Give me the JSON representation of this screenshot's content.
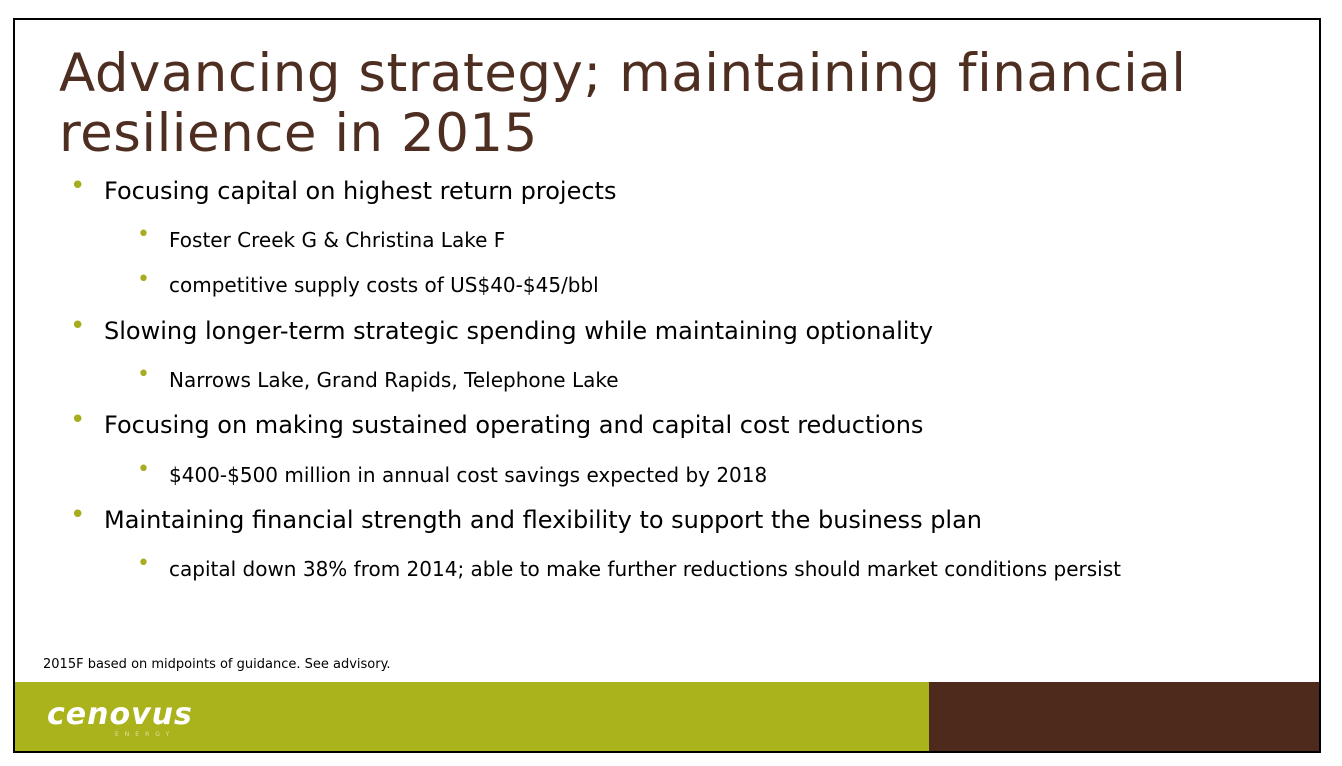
{
  "slide": {
    "title": "Advancing strategy; maintaining financial resilience in 2015",
    "bullets": [
      {
        "text": "Focusing capital on highest return projects"
      },
      {
        "text": "Foster Creek G & Christina Lake F"
      },
      {
        "text": "competitive supply costs of US$40-$45/bbl"
      },
      {
        "text": "Slowing longer-term strategic spending while maintaining optionality"
      },
      {
        "text": "Narrows Lake, Grand Rapids, Telephone Lake"
      },
      {
        "text": "Focusing on making sustained operating and capital cost reductions"
      },
      {
        "text": "$400-$500 million in annual cost savings expected by 2018"
      },
      {
        "text": "Maintaining financial strength and flexibility to support the business plan"
      },
      {
        "text": "capital down 38% from 2014; able to make further reductions should market conditions persist"
      }
    ],
    "bullet_glyph": "•",
    "footnote": "2015F based on midpoints of guidance. See advisory.",
    "logo": {
      "name": "cenovus",
      "sub": "ENERGY"
    },
    "colors": {
      "title": "#4e2e21",
      "bullet": "#a7ad1f",
      "footer_green": "#aab21c",
      "footer_brown": "#4e2a1c"
    }
  }
}
